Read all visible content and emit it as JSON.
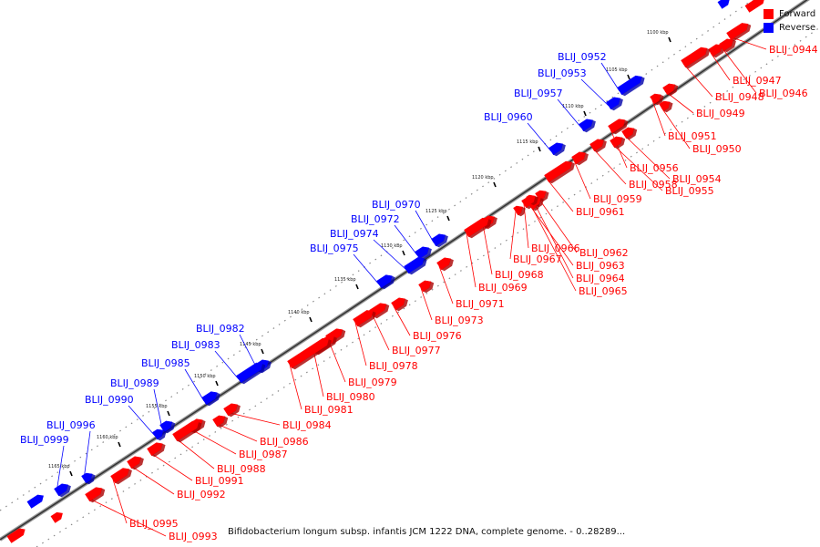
{
  "caption": "Bifidobacterium longum subsp. infantis JCM 1222 DNA, complete genome. - 0..28289...",
  "legend": {
    "forward_label": "Forward",
    "reverse_label": "Reverse",
    "forward_color": "#ff0000",
    "reverse_color": "#0000ff"
  },
  "ticks": [
    "1100 kbp",
    "1105 kbp",
    "1110 kbp",
    "1115 kbp",
    "1120 kbp",
    "1125 kbp",
    "1130 kbp",
    "1135 kbp",
    "1140 kbp",
    "1145 kbp",
    "1150 kbp",
    "1155 kbp",
    "1160 kbp",
    "1165 kbp"
  ],
  "reverse_genes": [
    "BLIJ_0952",
    "BLIJ_0953",
    "BLIJ_0957",
    "BLIJ_0960",
    "BLIJ_0970",
    "BLIJ_0972",
    "BLIJ_0974",
    "BLIJ_0975",
    "BLIJ_0982",
    "BLIJ_0983",
    "BLIJ_0985",
    "BLIJ_0989",
    "BLIJ_0990",
    "BLIJ_0996",
    "BLIJ_0999"
  ],
  "forward_genes": [
    "BLIJ_0944",
    "BLIJ_0947",
    "BLIJ_0946",
    "BLIJ_0948",
    "BLIJ_0949",
    "BLIJ_0951",
    "BLIJ_0950",
    "BLIJ_0956",
    "BLIJ_0954",
    "BLIJ_0958",
    "BLIJ_0955",
    "BLIJ_0959",
    "BLIJ_0961",
    "BLIJ_0962",
    "BLIJ_0966",
    "BLIJ_0967",
    "BLIJ_0963",
    "BLIJ_0964",
    "BLIJ_0965",
    "BLIJ_0968",
    "BLIJ_0969",
    "BLIJ_0971",
    "BLIJ_0973",
    "BLIJ_0976",
    "BLIJ_0977",
    "BLIJ_0978",
    "BLIJ_0979",
    "BLIJ_0980",
    "BLIJ_0981",
    "BLIJ_0984",
    "BLIJ_0986",
    "BLIJ_0987",
    "BLIJ_0988",
    "BLIJ_0991",
    "BLIJ_0992",
    "BLIJ_0995",
    "BLIJ_0993"
  ]
}
